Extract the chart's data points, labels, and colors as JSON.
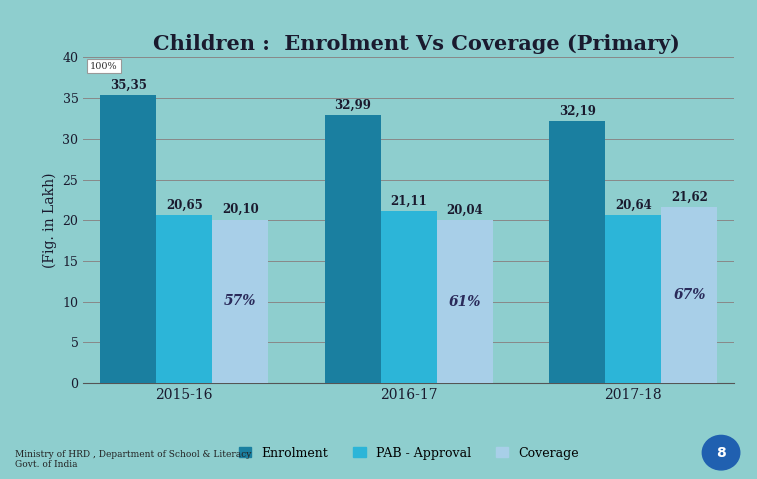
{
  "title": "Children :  Enrolment Vs Coverage (Primary)",
  "ylabel": "(Fig. in Lakh)",
  "years": [
    "2015-16",
    "2016-17",
    "2017-18"
  ],
  "enrolment": [
    35.35,
    32.99,
    32.19
  ],
  "pab": [
    20.65,
    21.11,
    20.64
  ],
  "coverage": [
    20.1,
    20.04,
    21.62
  ],
  "pct_labels": [
    "57%",
    "61%",
    "67%"
  ],
  "enrolment_color": "#1a7fa0",
  "pab_color": "#2cb5d8",
  "coverage_color": "#a8cfe8",
  "bg_color": "#8ecece",
  "plot_bg": "#8ecece",
  "ylim": [
    0,
    40
  ],
  "yticks": [
    0,
    5,
    10,
    15,
    20,
    25,
    30,
    35,
    40
  ],
  "bar_width": 0.25,
  "legend_labels": [
    "Enrolment",
    "PAB - Approval",
    "Coverage"
  ],
  "footer": "Ministry of HRD , Department of School & Literacy\nGovt. of India",
  "watermark": "100%"
}
